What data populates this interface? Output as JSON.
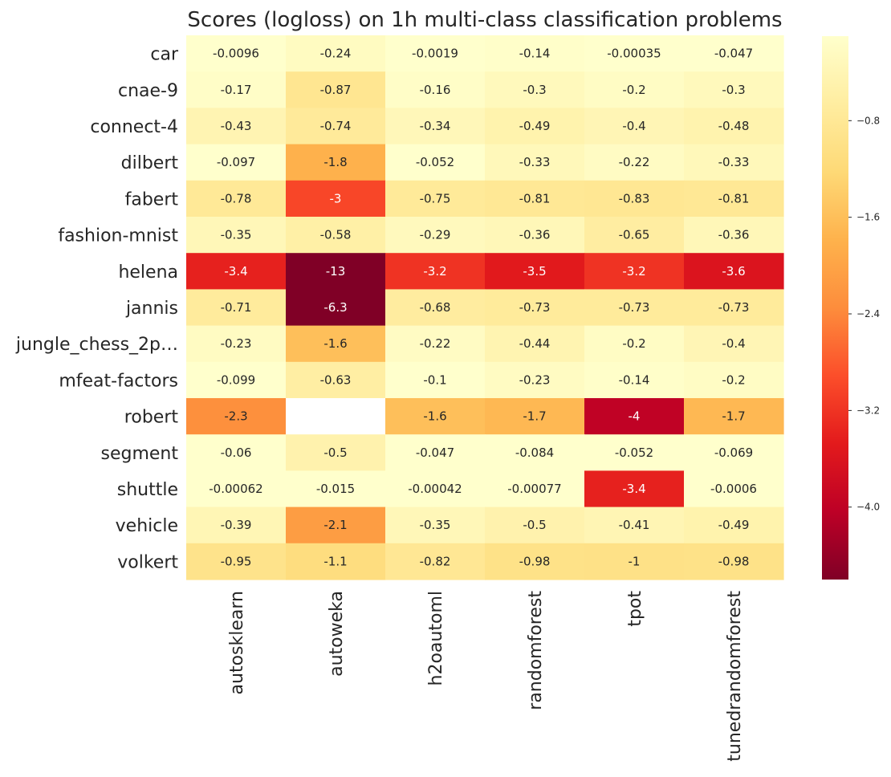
{
  "chart_data": {
    "type": "heatmap",
    "title": "Scores (logloss) on 1h multi-class classification problems",
    "rows": [
      "car",
      "cnae-9",
      "connect-4",
      "dilbert",
      "fabert",
      "fashion-mnist",
      "helena",
      "jannis",
      "jungle_chess_2p…",
      "mfeat-factors",
      "robert",
      "segment",
      "shuttle",
      "vehicle",
      "volkert"
    ],
    "columns": [
      "autosklearn",
      "autoweka",
      "h2oautoml",
      "randomforest",
      "tpot",
      "tunedrandomforest"
    ],
    "values": [
      [
        -0.0096,
        -0.24,
        -0.0019,
        -0.14,
        -0.00035,
        -0.047
      ],
      [
        -0.17,
        -0.87,
        -0.16,
        -0.3,
        -0.2,
        -0.3
      ],
      [
        -0.43,
        -0.74,
        -0.34,
        -0.49,
        -0.4,
        -0.48
      ],
      [
        -0.097,
        -1.8,
        -0.052,
        -0.33,
        -0.22,
        -0.33
      ],
      [
        -0.78,
        -3,
        -0.75,
        -0.81,
        -0.83,
        -0.81
      ],
      [
        -0.35,
        -0.58,
        -0.29,
        -0.36,
        -0.65,
        -0.36
      ],
      [
        -3.4,
        -13,
        -3.2,
        -3.5,
        -3.2,
        -3.6
      ],
      [
        -0.71,
        -6.3,
        -0.68,
        -0.73,
        -0.73,
        -0.73
      ],
      [
        -0.23,
        -1.6,
        -0.22,
        -0.44,
        -0.2,
        -0.4
      ],
      [
        -0.099,
        -0.63,
        -0.1,
        -0.23,
        -0.14,
        -0.2
      ],
      [
        -2.3,
        null,
        -1.6,
        -1.7,
        -4,
        -1.7
      ],
      [
        -0.06,
        -0.5,
        -0.047,
        -0.084,
        -0.052,
        -0.069
      ],
      [
        -0.00062,
        -0.015,
        -0.00042,
        -0.00077,
        -3.4,
        -0.0006
      ],
      [
        -0.39,
        -2.1,
        -0.35,
        -0.5,
        -0.41,
        -0.49
      ],
      [
        -0.95,
        -1.1,
        -0.82,
        -0.98,
        -1,
        -0.98
      ]
    ],
    "cell_labels": [
      [
        "-0.0096",
        "-0.24",
        "-0.0019",
        "-0.14",
        "-0.00035",
        "-0.047"
      ],
      [
        "-0.17",
        "-0.87",
        "-0.16",
        "-0.3",
        "-0.2",
        "-0.3"
      ],
      [
        "-0.43",
        "-0.74",
        "-0.34",
        "-0.49",
        "-0.4",
        "-0.48"
      ],
      [
        "-0.097",
        "-1.8",
        "-0.052",
        "-0.33",
        "-0.22",
        "-0.33"
      ],
      [
        "-0.78",
        "-3",
        "-0.75",
        "-0.81",
        "-0.83",
        "-0.81"
      ],
      [
        "-0.35",
        "-0.58",
        "-0.29",
        "-0.36",
        "-0.65",
        "-0.36"
      ],
      [
        "-3.4",
        "-13",
        "-3.2",
        "-3.5",
        "-3.2",
        "-3.6"
      ],
      [
        "-0.71",
        "-6.3",
        "-0.68",
        "-0.73",
        "-0.73",
        "-0.73"
      ],
      [
        "-0.23",
        "-1.6",
        "-0.22",
        "-0.44",
        "-0.2",
        "-0.4"
      ],
      [
        "-0.099",
        "-0.63",
        "-0.1",
        "-0.23",
        "-0.14",
        "-0.2"
      ],
      [
        "-2.3",
        "",
        "-1.6",
        "-1.7",
        "-4",
        "-1.7"
      ],
      [
        "-0.06",
        "-0.5",
        "-0.047",
        "-0.084",
        "-0.052",
        "-0.069"
      ],
      [
        "-0.00062",
        "-0.015",
        "-0.00042",
        "-0.00077",
        "-3.4",
        "-0.0006"
      ],
      [
        "-0.39",
        "-2.1",
        "-0.35",
        "-0.5",
        "-0.41",
        "-0.49"
      ],
      [
        "-0.95",
        "-1.1",
        "-0.82",
        "-0.98",
        "-1",
        "-0.98"
      ]
    ],
    "colormap": "YlOrRd (reversed)",
    "colormap_stops": [
      "#800026",
      "#bd0026",
      "#e31a1c",
      "#fc4e2a",
      "#fd8d3c",
      "#feb24c",
      "#fed976",
      "#ffeda0",
      "#ffffcc"
    ],
    "vmin": -4.6,
    "vmax": -0.1,
    "colorbar_ticks": [
      {
        "value": -0.8,
        "label": "−0.8"
      },
      {
        "value": -1.6,
        "label": "−1.6"
      },
      {
        "value": -2.4,
        "label": "−2.4"
      },
      {
        "value": -3.2,
        "label": "−3.2"
      },
      {
        "value": -4.0,
        "label": "−4.0"
      }
    ],
    "missing_color": "#ffffff",
    "grid": false,
    "legend": "colorbar-right"
  }
}
